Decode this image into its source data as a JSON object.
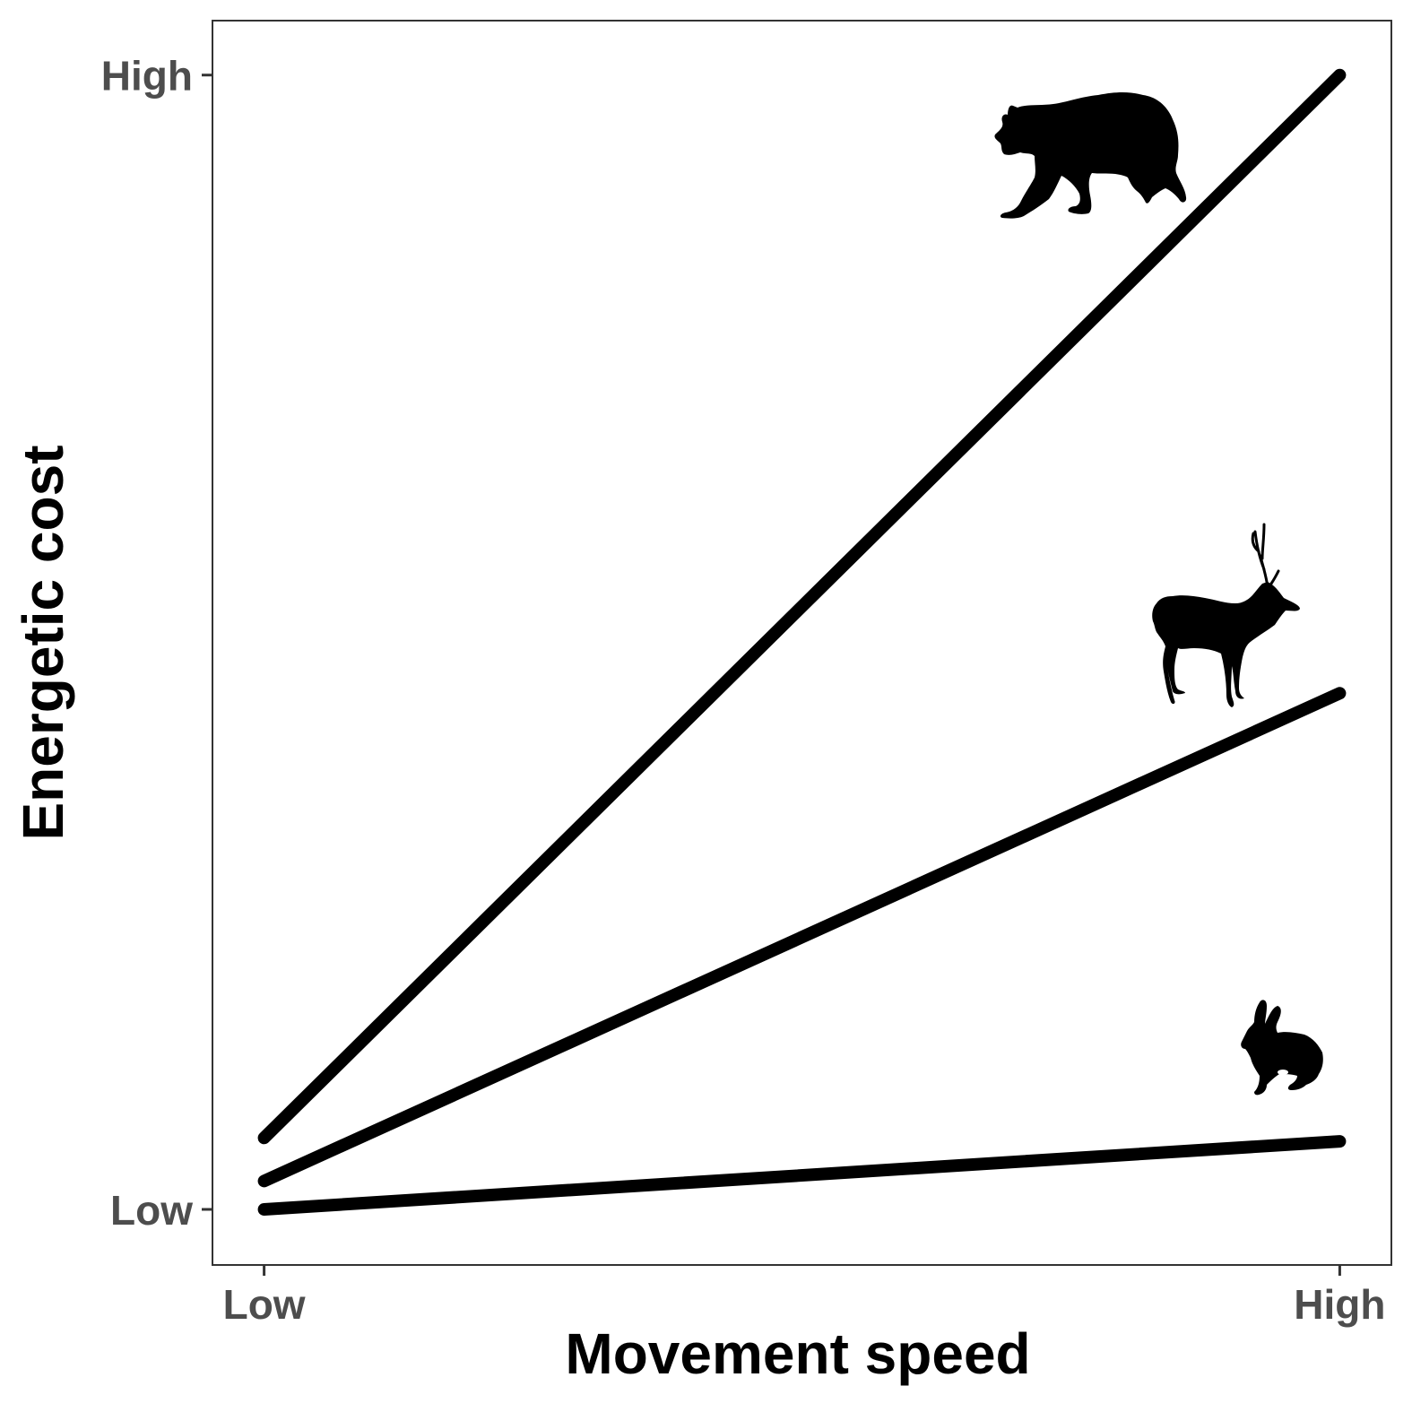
{
  "chart_data": {
    "type": "line",
    "title": "",
    "xlabel": "Movement speed",
    "ylabel": "Energetic cost",
    "x_ticks": [
      {
        "value": 0,
        "label": "Low"
      },
      {
        "value": 1,
        "label": "High"
      }
    ],
    "y_ticks": [
      {
        "value": 0,
        "label": "Low"
      },
      {
        "value": 1,
        "label": "High"
      }
    ],
    "xlim": [
      -0.048,
      1.048
    ],
    "ylim": [
      -0.049,
      1.048
    ],
    "grid": false,
    "legend": "none",
    "series": [
      {
        "icon": "bear-icon",
        "x": [
          0,
          1
        ],
        "y": [
          0.063,
          1.0
        ]
      },
      {
        "icon": "deer-icon",
        "x": [
          0,
          1
        ],
        "y": [
          0.025,
          0.455
        ]
      },
      {
        "icon": "hare-icon",
        "x": [
          0,
          1
        ],
        "y": [
          0.0,
          0.06
        ]
      }
    ],
    "line_color": "#000000",
    "panel_border_color": "#333333",
    "tick_label_color": "#4d4d4d"
  }
}
